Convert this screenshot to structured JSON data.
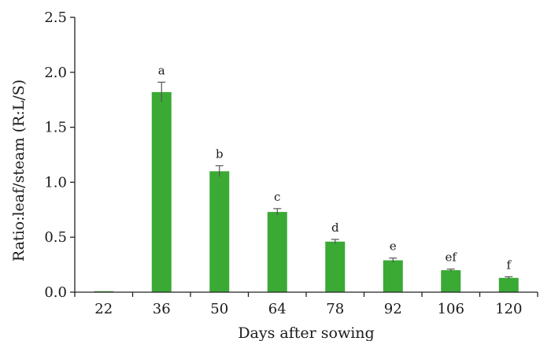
{
  "chart_data": {
    "type": "bar",
    "xlabel": "Days after sowing",
    "ylabel": "Ratio:leaf/steam (R:L/S)",
    "categories": [
      "22",
      "36",
      "50",
      "64",
      "78",
      "92",
      "106",
      "120"
    ],
    "values": [
      0.0,
      1.82,
      1.1,
      0.73,
      0.46,
      0.29,
      0.2,
      0.13
    ],
    "errors": [
      0.0,
      0.09,
      0.05,
      0.03,
      0.02,
      0.02,
      0.01,
      0.01
    ],
    "significance_letters": [
      "",
      "a",
      "b",
      "c",
      "d",
      "e",
      "ef",
      "f"
    ],
    "ylim": [
      0,
      2.5
    ],
    "yticks": [
      "0.0",
      "0.5",
      "1.0",
      "1.5",
      "2.0",
      "2.5"
    ],
    "grid": false,
    "legend": "none",
    "bar_color": "#3aaa35",
    "error_bar_color": "#555555",
    "axis_color": "#222222"
  }
}
